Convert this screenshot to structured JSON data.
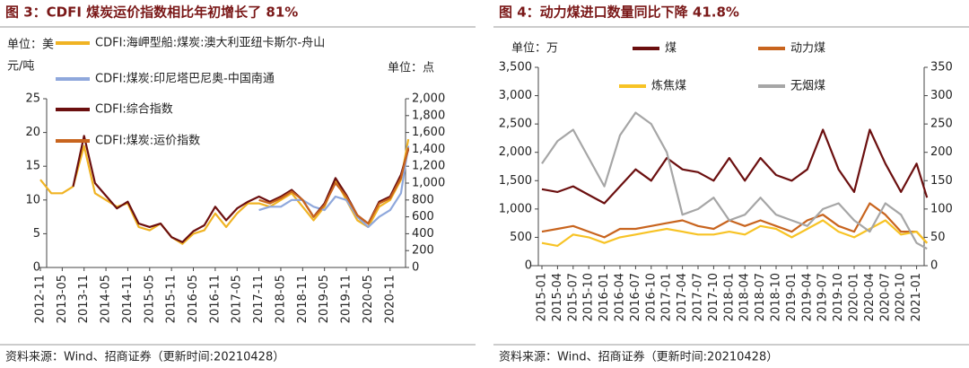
{
  "chart_data": [
    {
      "type": "line",
      "title": "图 3：CDFI 煤炭运价指数相比年初增长了 81%",
      "ylabel_lines": [
        "单位：美",
        "元/吨"
      ],
      "y2_label": "单位：点",
      "source": "资料来源：Wind、招商证券（更新时间:20210428）",
      "x": [
        "2012-11",
        "2013-02",
        "2013-05",
        "2013-08",
        "2013-11",
        "2014-02",
        "2014-05",
        "2014-08",
        "2014-11",
        "2015-02",
        "2015-05",
        "2015-08",
        "2015-11",
        "2016-02",
        "2016-05",
        "2016-08",
        "2016-11",
        "2017-02",
        "2017-05",
        "2017-08",
        "2017-11",
        "2018-02",
        "2018-05",
        "2018-08",
        "2018-11",
        "2019-02",
        "2019-05",
        "2019-08",
        "2019-11",
        "2020-02",
        "2020-05",
        "2020-08",
        "2020-11",
        "2021-02",
        "2021-04"
      ],
      "xticks": [
        "2012-11",
        "2013-05",
        "2013-11",
        "2014-05",
        "2014-11",
        "2015-05",
        "2015-11",
        "2016-05",
        "2016-11",
        "2017-05",
        "2017-11",
        "2018-05",
        "2018-11",
        "2019-05",
        "2019-11",
        "2020-05",
        "2020-11"
      ],
      "ylim": [
        0,
        25
      ],
      "yticks": [
        0,
        5,
        10,
        15,
        20,
        25
      ],
      "y2lim": [
        0,
        2000
      ],
      "y2ticks": [
        0,
        200,
        400,
        600,
        800,
        {
          "value": 1000,
          "label": "1,000"
        },
        {
          "value": 1200,
          "label": "1,200"
        },
        {
          "value": 1400,
          "label": "1,400"
        },
        {
          "value": 1600,
          "label": "1,600"
        },
        {
          "value": 1800,
          "label": "1,800"
        },
        {
          "value": 2000,
          "label": "2,000"
        }
      ],
      "series": [
        {
          "name": "CDFI:海岬型船:煤炭:澳大利亚纽卡斯尔-舟山",
          "color": "#f0b323",
          "axis": "y",
          "values": [
            13,
            11,
            11,
            12,
            18,
            11,
            10,
            9,
            9.5,
            6,
            5.5,
            6.5,
            4.5,
            3.5,
            5,
            5.5,
            8,
            6,
            8,
            9.5,
            9.5,
            9,
            10,
            11,
            9,
            7,
            9,
            13,
            10,
            7,
            6,
            9,
            10,
            13,
            19
          ]
        },
        {
          "name": "CDFI:煤炭:印尼塔巴尼奥-中国南通",
          "color": "#8fa8dc",
          "axis": "y",
          "values": [
            null,
            null,
            null,
            null,
            null,
            null,
            null,
            null,
            null,
            null,
            null,
            null,
            null,
            null,
            null,
            null,
            null,
            null,
            null,
            null,
            8.5,
            9,
            9,
            10,
            10,
            9,
            8.5,
            10.5,
            10,
            7.5,
            6,
            7.5,
            8.5,
            11,
            18
          ]
        },
        {
          "name": "CDFI:综合指数",
          "color": "#6b0f0f",
          "axis": "y2",
          "values": [
            null,
            null,
            null,
            960,
            1560,
            1000,
            850,
            700,
            780,
            520,
            480,
            520,
            360,
            300,
            430,
            500,
            720,
            560,
            700,
            780,
            840,
            780,
            840,
            920,
            800,
            600,
            760,
            1060,
            860,
            620,
            520,
            780,
            840,
            1100,
            1400
          ]
        },
        {
          "name": "CDFI:煤炭:运价指数",
          "color": "#c8641e",
          "axis": "y2",
          "values": [
            null,
            null,
            null,
            null,
            null,
            null,
            null,
            null,
            null,
            null,
            null,
            null,
            null,
            null,
            null,
            null,
            null,
            null,
            null,
            null,
            800,
            760,
            820,
            900,
            800,
            600,
            740,
            1000,
            840,
            620,
            520,
            760,
            820,
            1060,
            1420
          ]
        }
      ]
    },
    {
      "type": "line",
      "title": "图 4：动力煤进口数量同比下降 41.8%",
      "ylabel_lines": [
        "单位：万"
      ],
      "source": "资料来源：Wind、招商证券（更新时间:20210428）",
      "x": [
        "2015-01",
        "2015-04",
        "2015-07",
        "2015-10",
        "2016-01",
        "2016-04",
        "2016-07",
        "2016-10",
        "2017-01",
        "2017-04",
        "2017-07",
        "2017-10",
        "2018-01",
        "2018-04",
        "2018-07",
        "2018-10",
        "2019-01",
        "2019-04",
        "2019-07",
        "2019-10",
        "2020-01",
        "2020-04",
        "2020-07",
        "2020-10",
        "2021-01",
        "2021-03"
      ],
      "xticks": [
        "2015-01",
        "2015-04",
        "2015-07",
        "2015-10",
        "2016-01",
        "2016-04",
        "2016-07",
        "2016-10",
        "2017-01",
        "2017-04",
        "2017-07",
        "2017-10",
        "2018-01",
        "2018-04",
        "2018-07",
        "2018-10",
        "2019-01",
        "2019-04",
        "2019-07",
        "2019-10",
        "2020-01",
        "2020-04",
        "2020-07",
        "2020-10",
        "2021-01"
      ],
      "ylim": [
        0,
        3500
      ],
      "yticks": [
        0,
        500,
        {
          "value": 1000,
          "label": "1,000"
        },
        {
          "value": 1500,
          "label": "1,500"
        },
        {
          "value": 2000,
          "label": "2,000"
        },
        {
          "value": 2500,
          "label": "2,500"
        },
        {
          "value": 3000,
          "label": "3,000"
        },
        {
          "value": 3500,
          "label": "3,500"
        }
      ],
      "y2lim": [
        0,
        350
      ],
      "y2ticks": [
        0,
        50,
        100,
        150,
        200,
        250,
        300,
        350
      ],
      "series": [
        {
          "name": "煤",
          "color": "#6b0f0f",
          "axis": "y",
          "values": [
            1350,
            1300,
            1400,
            1250,
            1100,
            1400,
            1700,
            1500,
            1900,
            1700,
            1650,
            1500,
            1900,
            1500,
            1900,
            1600,
            1500,
            1700,
            2400,
            1700,
            1300,
            2400,
            1800,
            1300,
            1800,
            1200
          ]
        },
        {
          "name": "动力煤",
          "color": "#c8641e",
          "axis": "y",
          "values": [
            600,
            650,
            700,
            600,
            500,
            650,
            650,
            700,
            750,
            800,
            700,
            650,
            800,
            700,
            800,
            700,
            600,
            800,
            900,
            700,
            600,
            1100,
            900,
            600,
            600,
            400
          ]
        },
        {
          "name": "炼焦煤",
          "color": "#f7c325",
          "axis": "y",
          "values": [
            400,
            350,
            550,
            500,
            400,
            500,
            550,
            600,
            650,
            600,
            550,
            550,
            600,
            550,
            700,
            650,
            500,
            650,
            800,
            600,
            500,
            650,
            800,
            550,
            600,
            400
          ]
        },
        {
          "name": "无烟煤",
          "color": "#a6a6a6",
          "axis": "y2",
          "values": [
            180,
            220,
            240,
            190,
            140,
            230,
            270,
            250,
            200,
            90,
            100,
            120,
            80,
            90,
            120,
            90,
            80,
            70,
            100,
            110,
            80,
            60,
            110,
            90,
            40,
            30
          ]
        }
      ]
    }
  ]
}
